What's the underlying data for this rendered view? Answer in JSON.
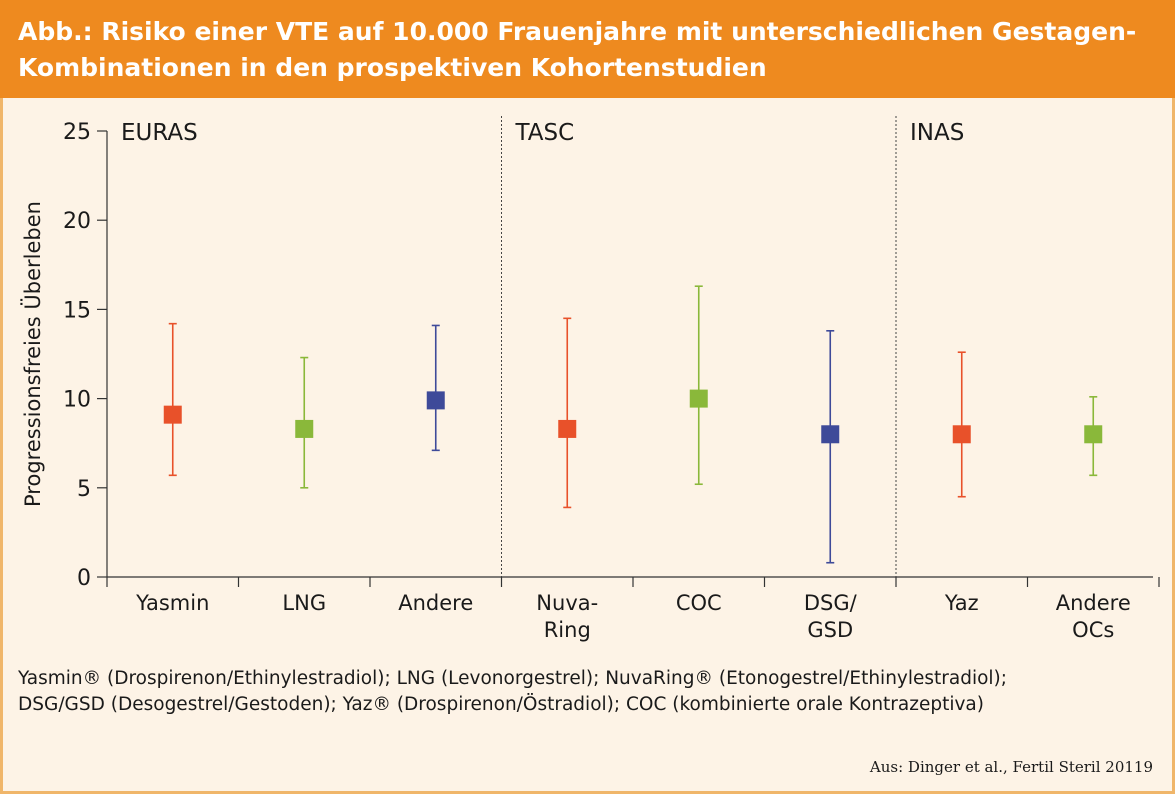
{
  "header": {
    "title": "Abb.: Risiko einer VTE auf 10.000 Frauenjahre mit unterschiedlichen Gestagen-Kombinationen in den prospektiven Kohortenstudien"
  },
  "chart_data": {
    "type": "errorbar",
    "ylabel": "Progressionsfreies Überleben",
    "ylim": [
      0,
      25
    ],
    "yticks": [
      0,
      5,
      10,
      15,
      20,
      25
    ],
    "groups": [
      {
        "label": "EURAS",
        "start": 0,
        "end": 3
      },
      {
        "label": "TASC",
        "start": 3,
        "end": 6
      },
      {
        "label": "INAS",
        "start": 6,
        "end": 8
      }
    ],
    "categories": [
      {
        "label": [
          "Yasmin"
        ],
        "value": 9.1,
        "low": 5.7,
        "high": 14.2,
        "color": "#e8512a"
      },
      {
        "label": [
          "LNG"
        ],
        "value": 8.3,
        "low": 5.0,
        "high": 12.3,
        "color": "#8ab83a"
      },
      {
        "label": [
          "Andere"
        ],
        "value": 9.9,
        "low": 7.1,
        "high": 14.1,
        "color": "#3e4a99"
      },
      {
        "label": [
          "Nuva-",
          "Ring"
        ],
        "value": 8.3,
        "low": 3.9,
        "high": 14.5,
        "color": "#e8512a"
      },
      {
        "label": [
          "COC"
        ],
        "value": 10.0,
        "low": 5.2,
        "high": 16.3,
        "color": "#8ab83a"
      },
      {
        "label": [
          "DSG/",
          "GSD"
        ],
        "value": 8.0,
        "low": 0.8,
        "high": 13.8,
        "color": "#3e4a99"
      },
      {
        "label": [
          "Yaz"
        ],
        "value": 8.0,
        "low": 4.5,
        "high": 12.6,
        "color": "#e8512a"
      },
      {
        "label": [
          "Andere",
          "OCs"
        ],
        "value": 8.0,
        "low": 5.7,
        "high": 10.1,
        "color": "#8ab83a"
      }
    ],
    "grid": false,
    "legend": "none"
  },
  "caption": {
    "line1": "Yasmin® (Drospirenon/Ethinylestradiol); LNG (Levonorgestrel); NuvaRing® (Etonogestrel/Ethinylestradiol);",
    "line2": "DSG/GSD (Desogestrel/Gestoden); Yaz® (Drospirenon/Östradiol); COC (kombinierte orale Kontrazeptiva)"
  },
  "source": "Aus: Dinger et al., Fertil Steril 20119"
}
